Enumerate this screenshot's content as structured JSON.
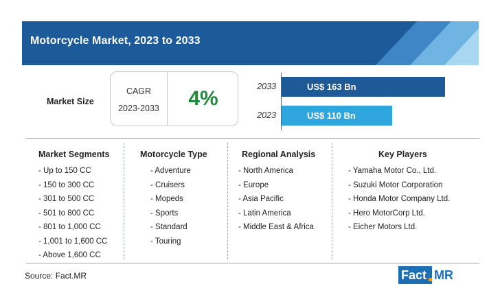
{
  "banner": {
    "title": "Motorcycle Market, 2023 to 2033"
  },
  "market_size": {
    "label": "Market Size",
    "cagr_title": "CAGR",
    "cagr_period": "2023-2033",
    "cagr_value": "4%"
  },
  "chart_data": {
    "type": "bar",
    "orientation": "horizontal",
    "categories": [
      "2033",
      "2023"
    ],
    "values": [
      163,
      110
    ],
    "value_labels": [
      "US$ 163 Bn",
      "US$ 110 Bn"
    ],
    "unit": "US$ Bn",
    "bar_colors": [
      "#1e5a98",
      "#2fa6de"
    ],
    "grid": false
  },
  "columns": [
    {
      "header": "Market Segments",
      "items": [
        "- Up to 150 CC",
        "- 150 to 300 CC",
        "- 301 to 500 CC",
        "- 501 to 800 CC",
        "- 801 to 1,000 CC",
        "- 1,001 to 1,600 CC",
        "- Above 1,600 CC"
      ]
    },
    {
      "header": "Motorcycle Type",
      "items": [
        "- Adventure",
        "- Cruisers",
        "- Mopeds",
        "- Sports",
        "- Standard",
        "- Touring"
      ]
    },
    {
      "header": "Regional Analysis",
      "items": [
        "- North America",
        "- Europe",
        "- Asia Pacific",
        "- Latin America",
        "- Middle East & Africa"
      ]
    },
    {
      "header": "Key Players",
      "items": [
        "- Yamaha Motor Co., Ltd.",
        "- Suzuki Motor Corporation",
        "- Honda Motor Company Ltd.",
        "- Hero MotorCorp Ltd.",
        "- Eicher Motors Ltd."
      ]
    }
  ],
  "footer": {
    "source": "Source: Fact.MR",
    "logo_part1": "Fact",
    "logo_part2": "MR"
  },
  "colors": {
    "banner": "#1d5a9a",
    "cagr_value": "#1f8a3c",
    "logo_blue": "#1d6fb5",
    "logo_orange": "#f39c12"
  }
}
